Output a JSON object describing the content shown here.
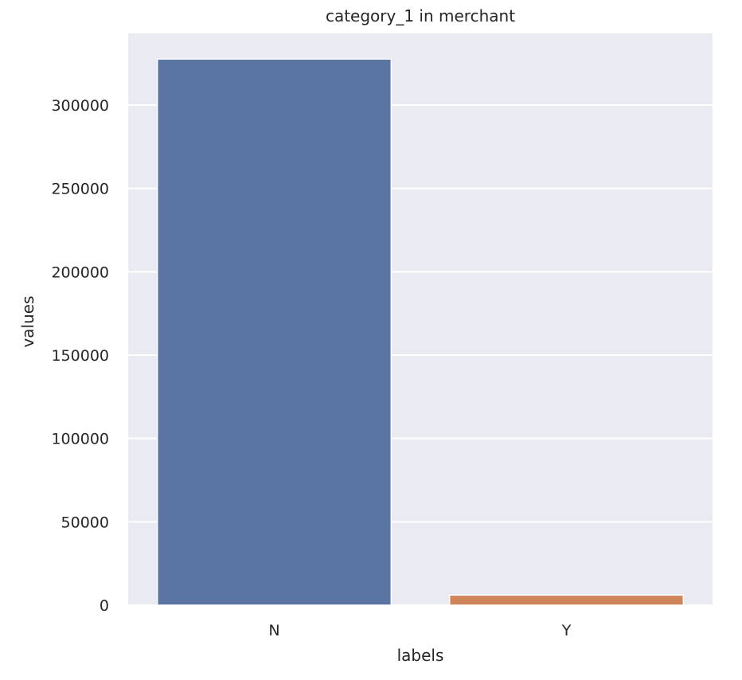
{
  "chart_data": {
    "type": "bar",
    "title": "category_1 in merchant",
    "xlabel": "labels",
    "ylabel": "values",
    "categories": [
      "N",
      "Y"
    ],
    "values": [
      327657,
      6039
    ],
    "colors": [
      "#5b75a3",
      "#cf8559"
    ],
    "ylim": [
      0,
      343000
    ],
    "yticks": [
      0,
      50000,
      100000,
      150000,
      200000,
      250000,
      300000
    ],
    "grid": true,
    "background": "#eaeaf2",
    "legend": "none"
  }
}
